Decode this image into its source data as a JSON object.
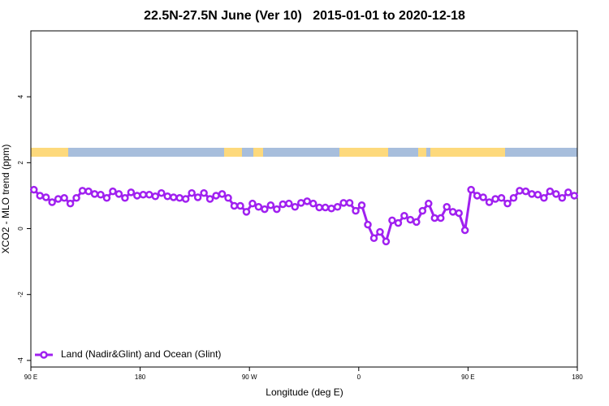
{
  "chart_data": {
    "type": "line",
    "title": "22.5N-27.5N June (Ver 10)   2015-01-01 to 2020-12-18",
    "xlabel": "Longitude (deg E)",
    "ylabel": "XCO2 - MLO trend (ppm)",
    "xlim": [
      90,
      540
    ],
    "ylim": [
      -4.2,
      6
    ],
    "xticks": [
      {
        "value": 90,
        "label": "90 E"
      },
      180,
      {
        "value": 270,
        "label": "90 W"
      },
      {
        "value": 360,
        "label": "0"
      },
      {
        "value": 450,
        "label": "90 E"
      },
      {
        "value": 540,
        "label": "180"
      }
    ],
    "yticks": [
      -4,
      -2,
      0,
      2,
      4
    ],
    "legend": "bottom-left",
    "x": [
      92.5,
      97.5,
      102.5,
      107.5,
      112.5,
      117.5,
      122.5,
      127.5,
      132.5,
      137.5,
      142.5,
      147.5,
      152.5,
      157.5,
      162.5,
      167.5,
      172.5,
      177.5,
      182.5,
      187.5,
      192.5,
      197.5,
      202.5,
      207.5,
      212.5,
      217.5,
      222.5,
      227.5,
      232.5,
      237.5,
      242.5,
      247.5,
      252.5,
      257.5,
      262.5,
      267.5,
      272.5,
      277.5,
      282.5,
      287.5,
      292.5,
      297.5,
      302.5,
      307.5,
      312.5,
      317.5,
      322.5,
      327.5,
      332.5,
      337.5,
      342.5,
      347.5,
      352.5,
      357.5,
      362.5,
      367.5,
      372.5,
      377.5,
      382.5,
      387.5,
      392.5,
      397.5,
      402.5,
      407.5,
      412.5,
      417.5,
      422.5,
      427.5,
      432.5,
      437.5,
      442.5,
      447.5,
      452.5,
      457.5,
      462.5,
      467.5,
      472.5,
      477.5,
      482.5,
      487.5,
      492.5,
      497.5,
      502.5,
      507.5,
      512.5,
      517.5,
      522.5,
      527.5,
      532.5,
      537.5
    ],
    "series": [
      {
        "name": "Land (Nadir&Glint) and Ocean (Glint)",
        "color": "#a020f0",
        "values": [
          1.18,
          1.0,
          0.95,
          0.8,
          0.9,
          0.93,
          0.76,
          0.93,
          1.15,
          1.13,
          1.05,
          1.03,
          0.93,
          1.13,
          1.05,
          0.93,
          1.1,
          1.0,
          1.03,
          1.03,
          0.98,
          1.08,
          0.98,
          0.95,
          0.93,
          0.9,
          1.08,
          0.95,
          1.08,
          0.9,
          1.0,
          1.05,
          0.93,
          0.69,
          0.69,
          0.51,
          0.76,
          0.66,
          0.59,
          0.71,
          0.59,
          0.74,
          0.76,
          0.66,
          0.78,
          0.83,
          0.76,
          0.64,
          0.64,
          0.61,
          0.66,
          0.78,
          0.78,
          0.54,
          0.71,
          0.12,
          -0.29,
          -0.1,
          -0.39,
          0.25,
          0.17,
          0.39,
          0.27,
          0.2,
          0.54,
          0.76,
          0.32,
          0.32,
          0.66,
          0.51,
          0.47,
          -0.05,
          1.18,
          1.0,
          0.95,
          0.8,
          0.9,
          0.93,
          0.76,
          0.93,
          1.15,
          1.13,
          1.05,
          1.03,
          0.93,
          1.13,
          1.05,
          0.93,
          1.1,
          1.0
        ]
      }
    ]
  }
}
